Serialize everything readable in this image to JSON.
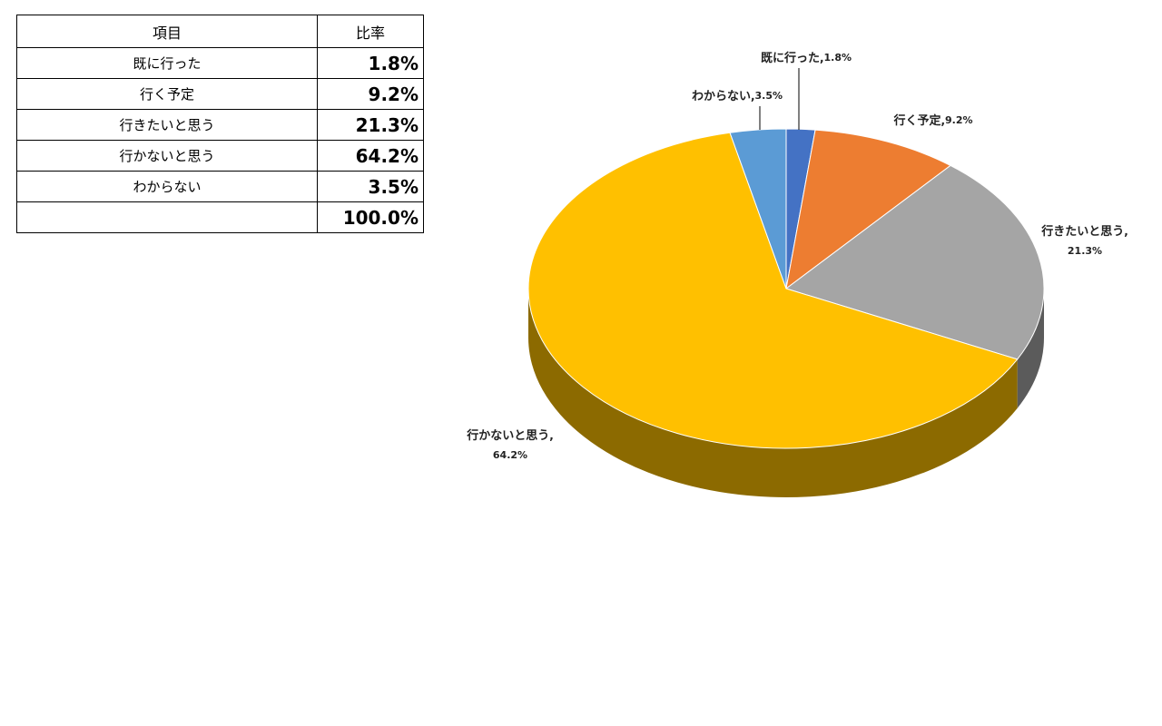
{
  "table": {
    "header": [
      "項目",
      "比率"
    ],
    "rows": [
      [
        "既に行った",
        "1.8%"
      ],
      [
        "行く予定",
        "9.2%"
      ],
      [
        "行きたいと思う",
        "21.3%"
      ],
      [
        "行かないと思う",
        "64.2%"
      ],
      [
        "わからない",
        "3.5%"
      ]
    ],
    "total": "100.0%"
  },
  "chart_data": {
    "type": "pie",
    "categories": [
      "既に行った",
      "行く予定",
      "行きたいと思う",
      "行かないと思う",
      "わからない"
    ],
    "values": [
      1.8,
      9.2,
      21.3,
      64.2,
      3.5
    ],
    "value_labels": [
      "1.8%",
      "9.2%",
      "21.3%",
      "64.2%",
      "3.5%"
    ],
    "label_separator": ",",
    "colors": [
      "#4472c4",
      "#ed7d31",
      "#a5a5a5",
      "#ffc000",
      "#5b9bd5"
    ]
  }
}
